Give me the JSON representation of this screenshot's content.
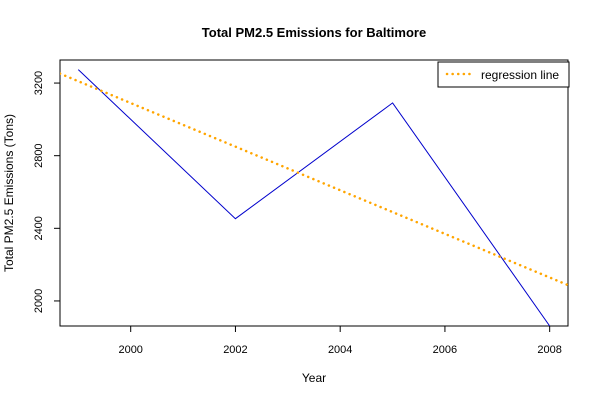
{
  "chart_data": {
    "type": "line",
    "title": "Total PM2.5 Emissions for Baltimore",
    "xlabel": "Year",
    "ylabel": "Total PM2.5 Emissions (Tons)",
    "xlim": [
      1998.65,
      2008.35
    ],
    "ylim": [
      1862,
      3327
    ],
    "xticks": [
      2000,
      2002,
      2004,
      2006,
      2008
    ],
    "yticks": [
      2000,
      2400,
      2800,
      3200
    ],
    "series": [
      {
        "kind": "data",
        "color": "#0000cc",
        "x": [
          1999,
          2002,
          2005,
          2008
        ],
        "y": [
          3274,
          2453,
          3091,
          1862
        ]
      },
      {
        "kind": "regression",
        "name": "regression line",
        "color": "#ffa500",
        "dash": "dotted",
        "x": [
          1998.65,
          2008.35
        ],
        "y": [
          3252,
          2087
        ]
      }
    ],
    "legend": {
      "position": "top-right",
      "entries": [
        "regression line"
      ]
    },
    "grid": false
  }
}
